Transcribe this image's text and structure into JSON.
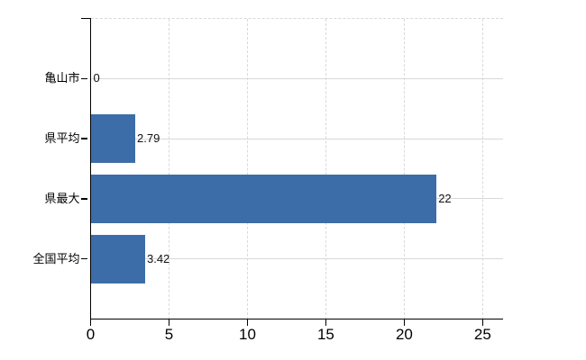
{
  "chart_data": {
    "type": "bar",
    "orientation": "horizontal",
    "title": "",
    "categories": [
      "亀山市",
      "県平均",
      "県最大",
      "全国平均"
    ],
    "values": [
      0,
      2.79,
      22,
      3.42
    ],
    "value_labels": [
      "0",
      "2.79",
      "22",
      "3.42"
    ],
    "x_ticks": [
      0,
      5,
      10,
      15,
      20,
      25
    ],
    "x_tick_labels": [
      "0",
      "5",
      "10",
      "15",
      "20",
      "25"
    ],
    "xlim": [
      0,
      26.3
    ],
    "xlabel": "",
    "ylabel": "",
    "grid": "on",
    "legend": "none",
    "colors": {
      "bar": "#3d6da8",
      "grid_vertical": "#d9d9d9",
      "grid_horizontal": "#d8d8d8",
      "axis": "#000000",
      "text": "#000000",
      "background": "#ffffff"
    }
  }
}
